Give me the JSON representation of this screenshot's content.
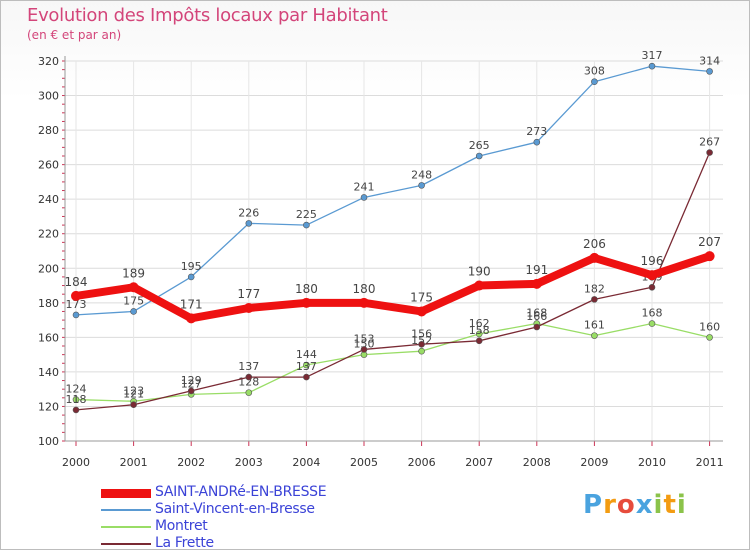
{
  "chart_data": {
    "type": "line",
    "title": "Evolution des Impôts locaux par Habitant",
    "subtitle": "(en € et par an)",
    "xlabel": "",
    "ylabel": "",
    "categories": [
      "2000",
      "2001",
      "2002",
      "2003",
      "2004",
      "2005",
      "2006",
      "2007",
      "2008",
      "2009",
      "2010",
      "2011"
    ],
    "ylim": [
      100,
      320
    ],
    "yticks": [
      100,
      120,
      140,
      160,
      180,
      200,
      220,
      240,
      260,
      280,
      300,
      320
    ],
    "grid": true,
    "legend_position": "bottom-left",
    "series": [
      {
        "name": "SAINT-ANDRé-EN-BRESSE",
        "color": "#ee1111",
        "emphasis": true,
        "values": [
          184,
          189,
          171,
          177,
          180,
          180,
          175,
          190,
          191,
          206,
          196,
          207
        ]
      },
      {
        "name": "Saint-Vincent-en-Bresse",
        "color": "#5a9ad2",
        "values": [
          173,
          175,
          195,
          226,
          225,
          241,
          248,
          265,
          273,
          308,
          317,
          314
        ]
      },
      {
        "name": "Montret",
        "color": "#99dd66",
        "values": [
          124,
          123,
          127,
          128,
          144,
          150,
          152,
          162,
          168,
          161,
          168,
          160
        ]
      },
      {
        "name": "La Frette",
        "color": "#7a2a34",
        "values": [
          118,
          121,
          129,
          137,
          137,
          153,
          156,
          158,
          166,
          182,
          189,
          267
        ]
      }
    ]
  },
  "logo": {
    "letters": [
      "P",
      "r",
      "o",
      "x",
      "i",
      "t",
      "i"
    ],
    "colors": [
      "#4aa3df",
      "#f39c12",
      "#e74c3c",
      "#4aa3df",
      "#8bc34a",
      "#f39c12",
      "#8bc34a"
    ]
  }
}
